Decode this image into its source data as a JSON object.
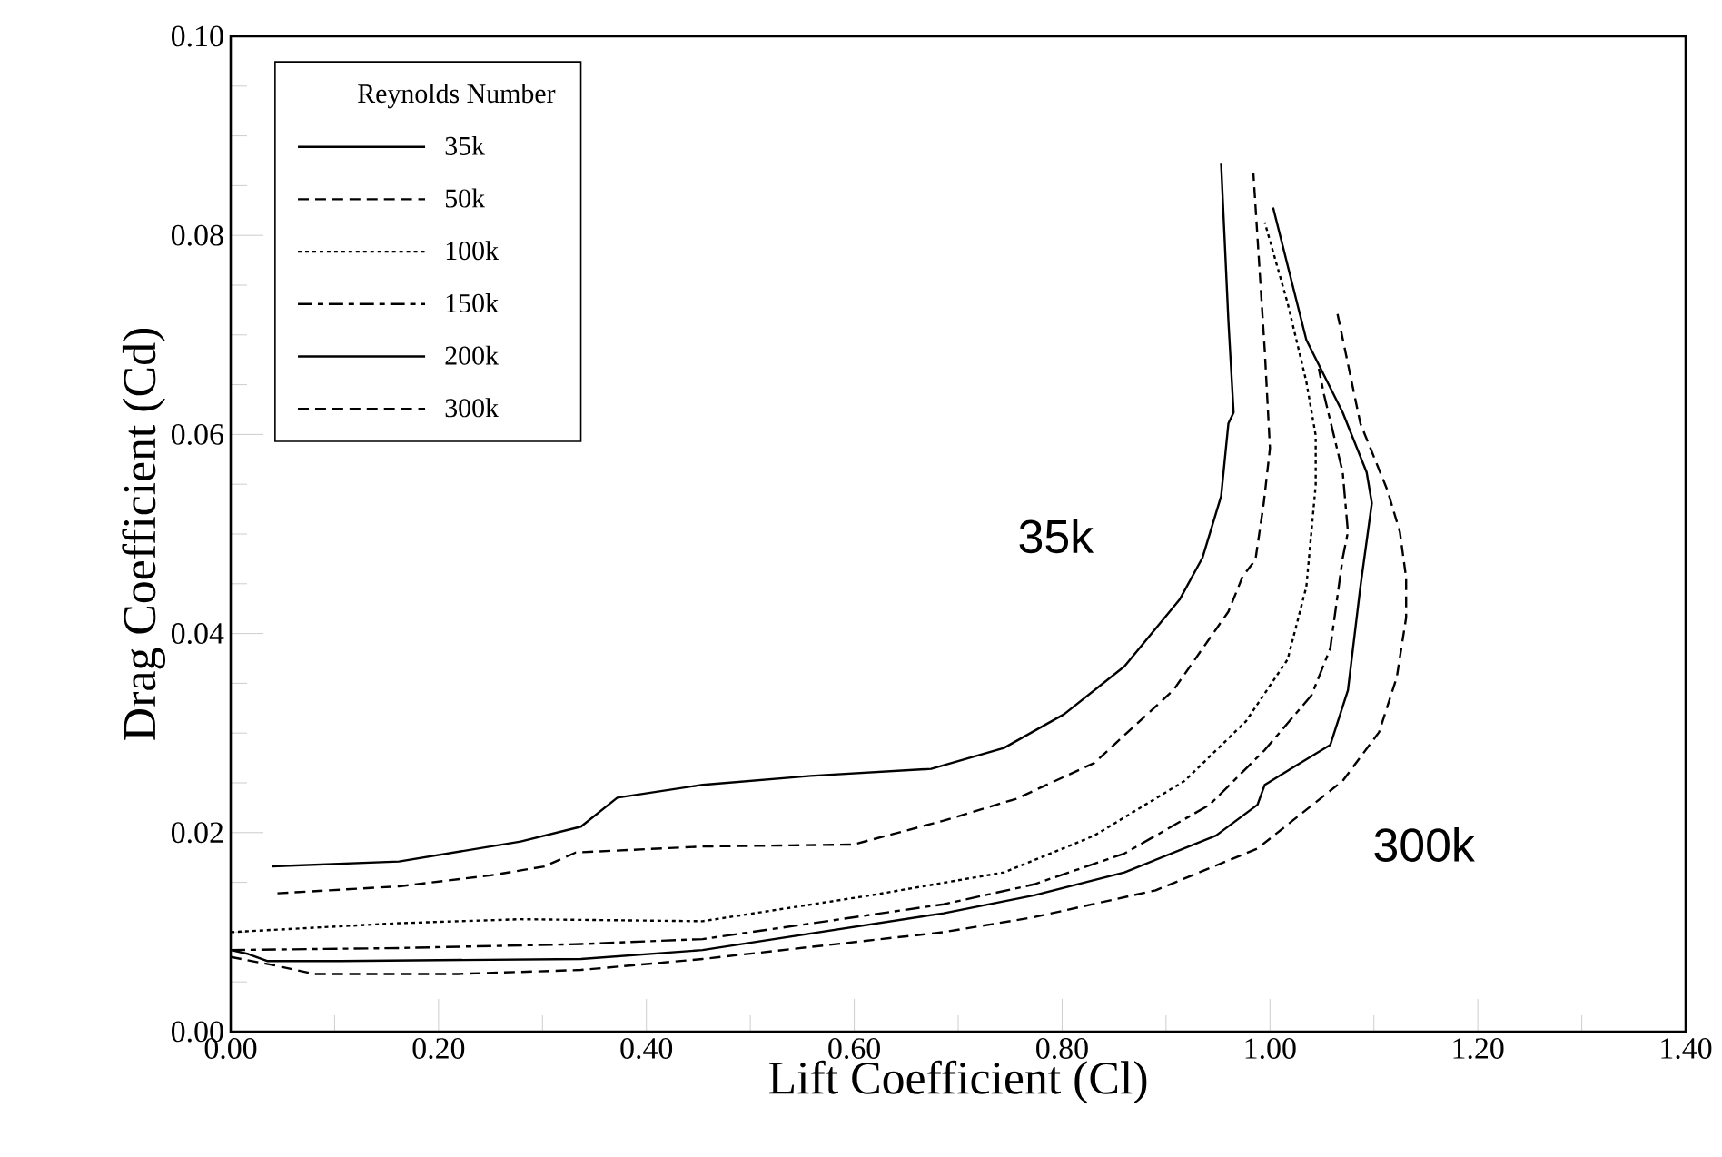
{
  "chart_data": {
    "type": "line",
    "xlabel": "Lift Coefficient (Cl)",
    "ylabel": "Drag Coefficient (Cd)",
    "legend_title": "Reynolds Number",
    "legend": "top left",
    "xlim": [
      0,
      1.4
    ],
    "ylim": [
      0,
      0.1
    ],
    "xticks": [
      {
        "value": 0,
        "label": "0.00"
      },
      {
        "value": 0.2,
        "label": "0.20"
      },
      {
        "value": 0.4,
        "label": "0.40"
      },
      {
        "value": 0.6,
        "label": "0.60"
      },
      {
        "value": 0.8,
        "label": "0.80"
      },
      {
        "value": 1.0,
        "label": "1.00"
      },
      {
        "value": 1.2,
        "label": "1.20"
      },
      {
        "value": 1.4,
        "label": "1.40"
      }
    ],
    "yticks": [
      {
        "value": 0,
        "label": "0.00"
      },
      {
        "value": 0.02,
        "label": "0.02"
      },
      {
        "value": 0.04,
        "label": "0.04"
      },
      {
        "value": 0.06,
        "label": "0.06"
      },
      {
        "value": 0.08,
        "label": "0.08"
      },
      {
        "value": 0.1,
        "label": "0.10"
      }
    ],
    "series": [
      {
        "name": "35k",
        "color": "#000000",
        "line_style": "solid",
        "x": [
          0.04,
          0.162,
          0.279,
          0.337,
          0.372,
          0.454,
          0.558,
          0.674,
          0.744,
          0.802,
          0.86,
          0.913,
          0.935,
          0.953,
          0.96,
          0.965,
          0.96,
          0.953
        ],
        "values": [
          0.0166,
          0.0171,
          0.0191,
          0.0206,
          0.0235,
          0.0248,
          0.0257,
          0.0264,
          0.0285,
          0.0319,
          0.0367,
          0.0434,
          0.0476,
          0.0538,
          0.0611,
          0.0622,
          0.0714,
          0.0872
        ]
      },
      {
        "name": "50k",
        "color": "#000000",
        "line_style": "dashed",
        "x": [
          0.045,
          0.162,
          0.25,
          0.302,
          0.332,
          0.454,
          0.599,
          0.686,
          0.756,
          0.831,
          0.907,
          0.96,
          0.974,
          0.986,
          0.994,
          1.0,
          0.995,
          0.984
        ],
        "values": [
          0.0139,
          0.0146,
          0.0157,
          0.0166,
          0.018,
          0.0186,
          0.0188,
          0.0212,
          0.0234,
          0.027,
          0.0343,
          0.0422,
          0.0458,
          0.0474,
          0.0531,
          0.0586,
          0.0684,
          0.0863
        ]
      },
      {
        "name": "100k",
        "color": "#000000",
        "line_style": "dotted",
        "x": [
          0.0,
          0.162,
          0.279,
          0.454,
          0.616,
          0.744,
          0.831,
          0.918,
          0.977,
          1.017,
          1.035,
          1.044,
          1.044,
          1.035,
          1.017,
          0.995
        ],
        "values": [
          0.01,
          0.0109,
          0.0113,
          0.0111,
          0.0137,
          0.016,
          0.0197,
          0.0252,
          0.0312,
          0.0374,
          0.0447,
          0.0549,
          0.0599,
          0.0653,
          0.0732,
          0.0813
        ]
      },
      {
        "name": "150k",
        "color": "#000000",
        "line_style": "dashdot",
        "x": [
          0.0,
          0.162,
          0.337,
          0.454,
          0.686,
          0.773,
          0.86,
          0.942,
          0.995,
          1.04,
          1.058,
          1.07,
          1.075,
          1.07,
          1.052,
          1.047
        ],
        "values": [
          0.0082,
          0.0084,
          0.0088,
          0.0093,
          0.0128,
          0.0148,
          0.0179,
          0.0228,
          0.0283,
          0.0338,
          0.0385,
          0.0476,
          0.0502,
          0.0562,
          0.064,
          0.0666
        ]
      },
      {
        "name": "200k",
        "color": "#000000",
        "line_style": "solid",
        "x": [
          0.0,
          0.017,
          0.035,
          0.105,
          0.337,
          0.454,
          0.686,
          0.773,
          0.86,
          0.948,
          0.988,
          0.995,
          1.023,
          1.058,
          1.075,
          1.087,
          1.098,
          1.093,
          1.07,
          1.035,
          1.003
        ],
        "values": [
          0.0082,
          0.0078,
          0.0071,
          0.0071,
          0.0073,
          0.0082,
          0.0119,
          0.0137,
          0.016,
          0.0197,
          0.0228,
          0.0248,
          0.0266,
          0.0288,
          0.0343,
          0.0447,
          0.0531,
          0.0562,
          0.0622,
          0.0695,
          0.0828
        ]
      },
      {
        "name": "300k",
        "color": "#000000",
        "line_style": "dashed",
        "x": [
          0.0,
          0.045,
          0.08,
          0.22,
          0.337,
          0.454,
          0.686,
          0.773,
          0.89,
          0.988,
          1.07,
          1.105,
          1.122,
          1.131,
          1.131,
          1.125,
          1.113,
          1.087,
          1.065
        ],
        "values": [
          0.0075,
          0.0066,
          0.0058,
          0.0058,
          0.0062,
          0.0073,
          0.01,
          0.0115,
          0.0142,
          0.0184,
          0.0252,
          0.0301,
          0.0356,
          0.0416,
          0.0456,
          0.0502,
          0.0544,
          0.0611,
          0.0721
        ]
      }
    ],
    "annotations": [
      "35k",
      "300k"
    ]
  }
}
